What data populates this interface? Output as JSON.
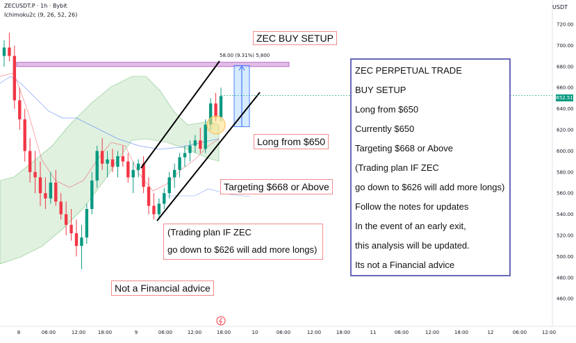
{
  "header": {
    "symbol_line": "ZECUSDT.P · 1h · Bybit",
    "indicator_line": "Ichimoku2c (9, 26, 52, 26)",
    "currency": "USDT"
  },
  "price_tag": "652.51",
  "measure_label": "58.00 (9.31%) 5,800",
  "annotations": {
    "setup": "ZEC BUY SETUP",
    "long": "Long from $650",
    "target": "Targeting $668 or Above",
    "plan_line1": "(Trading plan IF ZEC",
    "plan_line2": "go down to $626 will add more longs)",
    "nfa": "Not a Financial advice"
  },
  "panel": {
    "lines": [
      "ZEC PERPETUAL TRADE",
      "BUY SETUP",
      "Long from $650",
      "Currently $650",
      "Targeting $668 or Above",
      "(Trading plan IF ZEC",
      "go down to $626 will add more longs)",
      "Follow the notes for updates",
      "In the event of an early exit,",
      "this analysis will be updated.",
      "Its not a Financial advice"
    ]
  },
  "colors": {
    "up": "#089981",
    "down": "#f23645",
    "cloud": "#a5d6a7",
    "panel_border": "#6666b8",
    "target_zone": "#e1bee7"
  },
  "chart_data": {
    "type": "candlestick",
    "y_axis": {
      "ticks": [
        "720.00",
        "700.00",
        "680.00",
        "660.00",
        "640.00",
        "620.00",
        "600.00",
        "580.00",
        "560.00",
        "540.00",
        "520.00",
        "500.00",
        "480.00",
        "460.00"
      ],
      "ylim": [
        454,
        732
      ]
    },
    "x_axis": {
      "ticks": [
        "8",
        "06:00",
        "12:00",
        "18:00",
        "9",
        "06:00",
        "12:00",
        "18:00",
        "10",
        "06:00",
        "12:00",
        "18:00",
        "11",
        "06:00",
        "12:00",
        "18:00",
        "12",
        "06:00",
        "12:00"
      ]
    },
    "candles_ohlc": [
      [
        690,
        705,
        680,
        698
      ],
      [
        698,
        712,
        685,
        690
      ],
      [
        690,
        700,
        640,
        648
      ],
      [
        648,
        660,
        620,
        630
      ],
      [
        630,
        640,
        590,
        600
      ],
      [
        600,
        612,
        570,
        580
      ],
      [
        580,
        600,
        560,
        575
      ],
      [
        575,
        590,
        548,
        560
      ],
      [
        560,
        575,
        545,
        555
      ],
      [
        555,
        580,
        550,
        570
      ],
      [
        570,
        582,
        548,
        552
      ],
      [
        552,
        560,
        535,
        540
      ],
      [
        540,
        552,
        520,
        530
      ],
      [
        530,
        545,
        515,
        522
      ],
      [
        522,
        535,
        500,
        510
      ],
      [
        510,
        530,
        488,
        518
      ],
      [
        518,
        550,
        512,
        545
      ],
      [
        545,
        580,
        540,
        572
      ],
      [
        572,
        605,
        565,
        600
      ],
      [
        600,
        612,
        582,
        588
      ],
      [
        588,
        600,
        575,
        592
      ],
      [
        592,
        602,
        580,
        585
      ],
      [
        585,
        600,
        575,
        595
      ],
      [
        595,
        605,
        585,
        590
      ],
      [
        590,
        598,
        570,
        575
      ],
      [
        575,
        590,
        560,
        582
      ],
      [
        582,
        592,
        575,
        588
      ],
      [
        588,
        595,
        560,
        566
      ],
      [
        566,
        575,
        540,
        548
      ],
      [
        548,
        560,
        535,
        540
      ],
      [
        540,
        555,
        535,
        550
      ],
      [
        550,
        565,
        545,
        560
      ],
      [
        560,
        580,
        555,
        575
      ],
      [
        575,
        588,
        565,
        582
      ],
      [
        582,
        598,
        575,
        594
      ],
      [
        594,
        605,
        585,
        598
      ],
      [
        598,
        610,
        590,
        605
      ],
      [
        605,
        615,
        598,
        610
      ],
      [
        610,
        622,
        598,
        602
      ],
      [
        602,
        630,
        598,
        625
      ],
      [
        625,
        650,
        620,
        645
      ],
      [
        645,
        655,
        628,
        632
      ],
      [
        632,
        660,
        628,
        652
      ]
    ],
    "target_zone": {
      "low": 680,
      "high": 684,
      "label": "58.00 (9.31%) 5,800"
    },
    "current_price": 652.51
  }
}
